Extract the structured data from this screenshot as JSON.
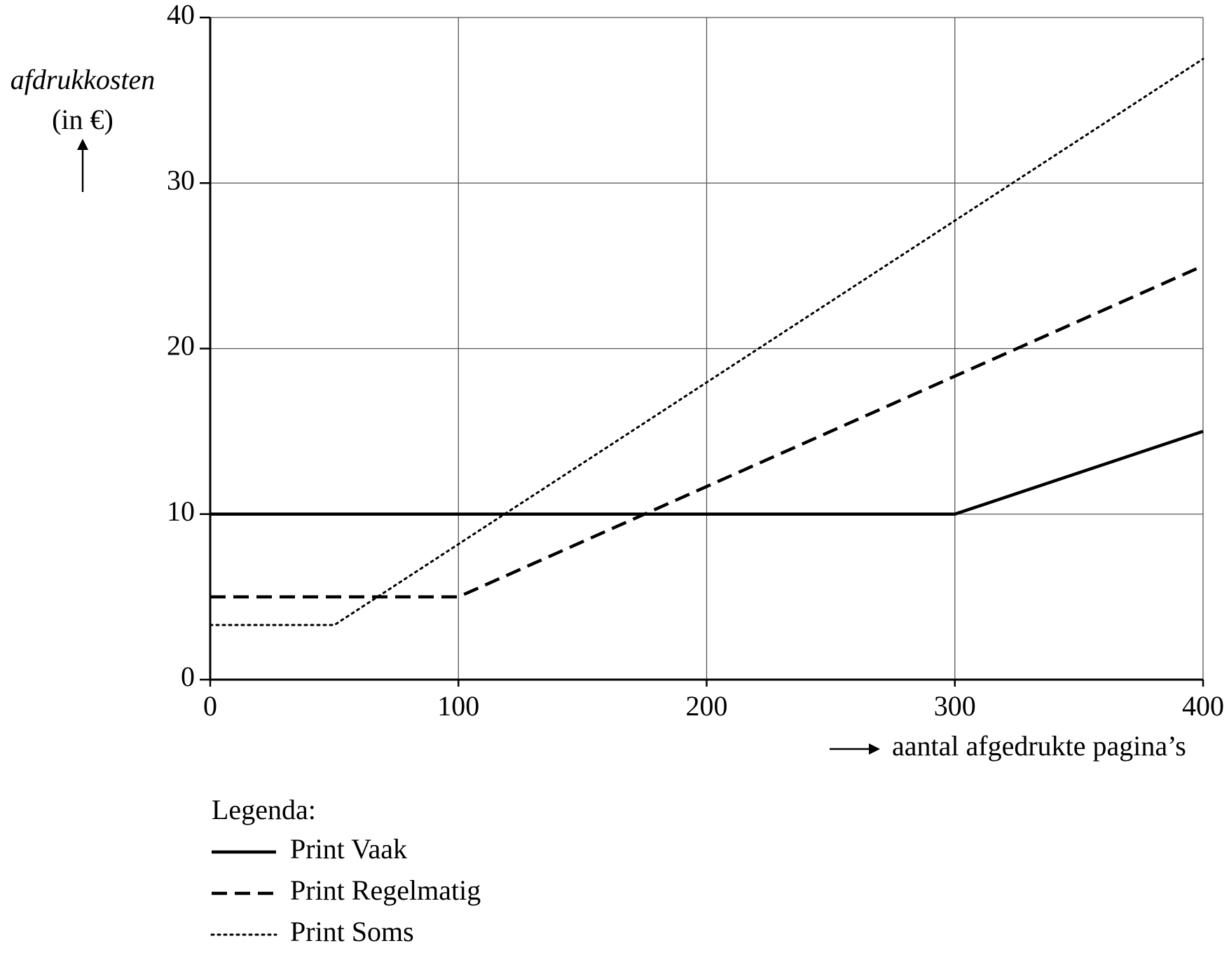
{
  "chart_data": {
    "type": "line",
    "ylabel": [
      "afdrukkosten",
      "(in €)"
    ],
    "xlabel": "aantal afgedrukte pagina’s",
    "legend_title": "Legenda:",
    "xlim": [
      0,
      400
    ],
    "xticks": [
      0,
      100,
      200,
      300,
      400
    ],
    "ylim": [
      0,
      40
    ],
    "yticks": [
      0,
      10,
      20,
      30,
      40
    ],
    "grid": true,
    "legend": "bottom-left",
    "series": [
      {
        "name": "Print Vaak",
        "color": "#000000",
        "style": "solid",
        "x": [
          0,
          300,
          400
        ],
        "values": [
          10,
          10,
          15
        ]
      },
      {
        "name": "Print Regelmatig",
        "color": "#000000",
        "style": "dashed",
        "x": [
          0,
          100,
          400
        ],
        "values": [
          5,
          5,
          25
        ]
      },
      {
        "name": "Print Soms",
        "color": "#000000",
        "style": "dotted",
        "x": [
          0,
          50,
          400
        ],
        "values": [
          3.3,
          3.3,
          37.5
        ]
      }
    ]
  }
}
